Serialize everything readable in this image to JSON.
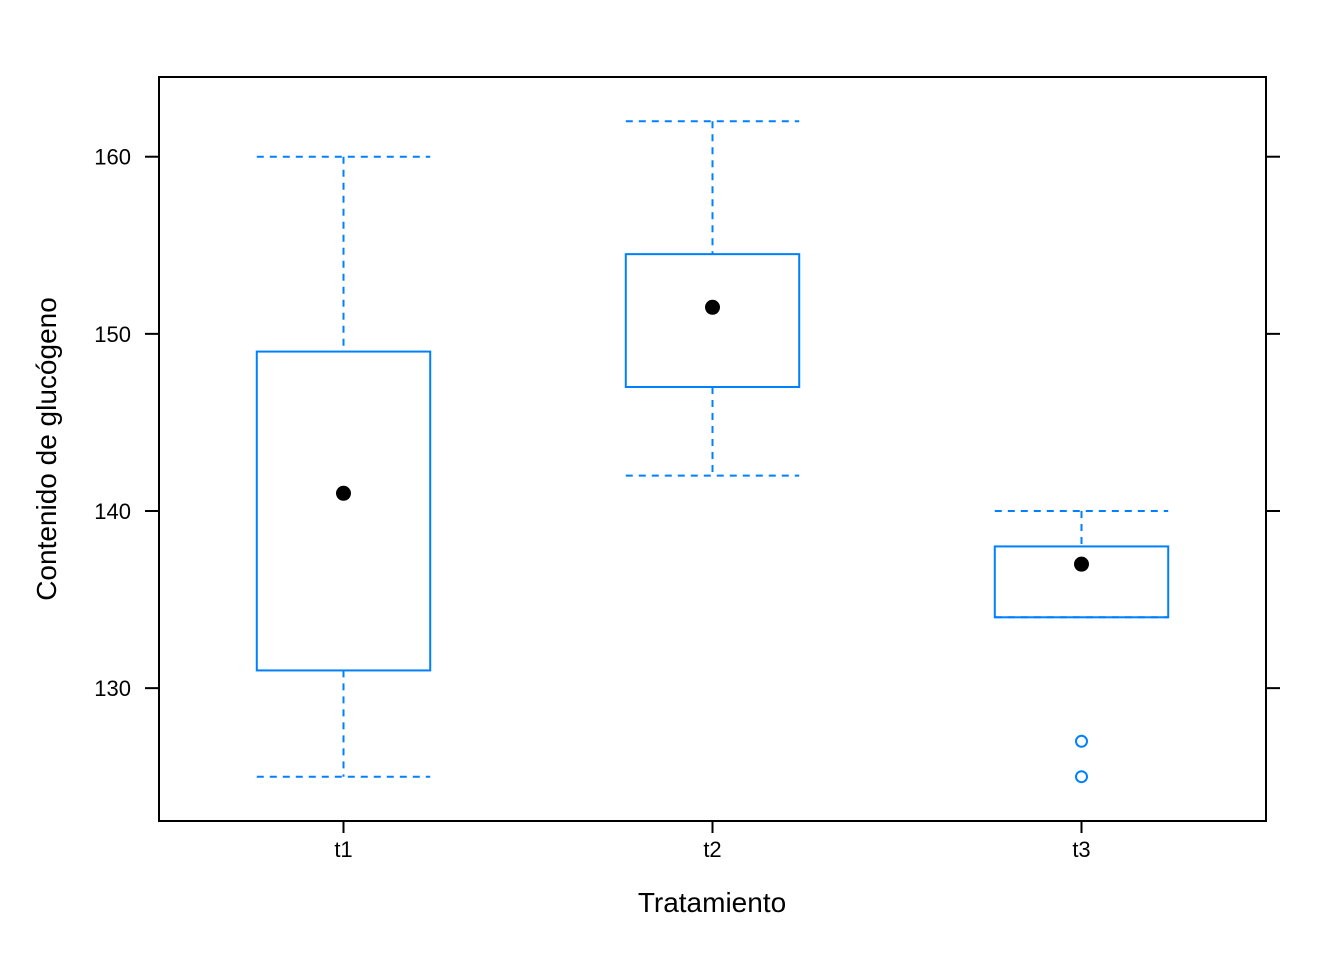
{
  "chart_data": {
    "type": "box",
    "xlabel": "Tratamiento",
    "ylabel": "Contenido de glucógeno",
    "ylim": [
      122.5,
      164.5
    ],
    "yticks": [
      130,
      140,
      150,
      160
    ],
    "categories": [
      "t1",
      "t2",
      "t3"
    ],
    "boxes": [
      {
        "category": "t1",
        "whisker_low": 125,
        "q1": 131,
        "median": 141,
        "q3": 149,
        "whisker_high": 160,
        "outliers": []
      },
      {
        "category": "t2",
        "whisker_low": 142,
        "q1": 147,
        "median": 151.5,
        "q3": 154.5,
        "whisker_high": 162,
        "outliers": []
      },
      {
        "category": "t3",
        "whisker_low": 134,
        "q1": 134,
        "median": 137,
        "q3": 138,
        "whisker_high": 140,
        "outliers": [
          127,
          125
        ]
      }
    ],
    "grid": false,
    "colors": {
      "box": "#0080ff",
      "median_dot": "#000000",
      "frame": "#000000"
    }
  }
}
